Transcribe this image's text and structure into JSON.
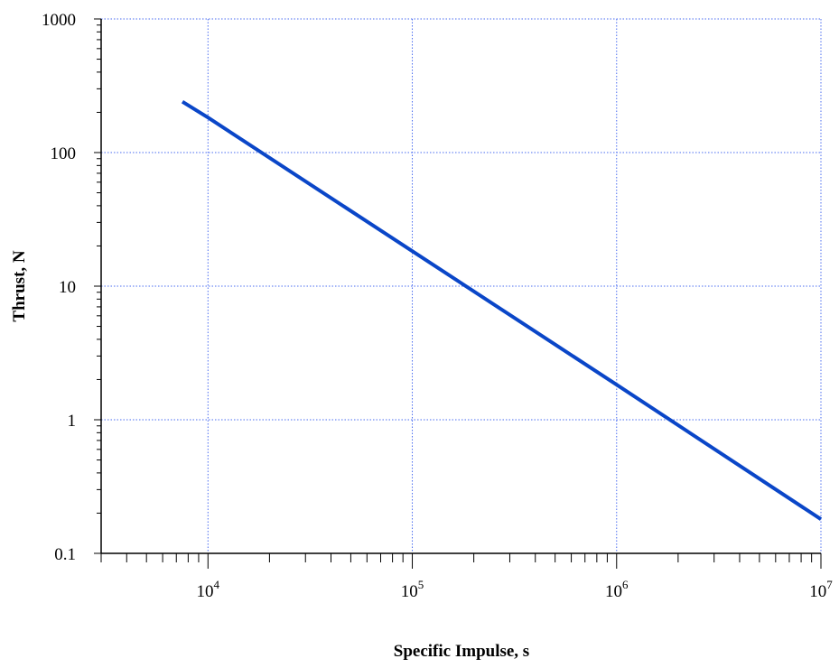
{
  "chart_data": {
    "type": "line",
    "title": "",
    "xlabel": "Specific Impulse, s",
    "ylabel": "Thrust, N",
    "xscale": "log",
    "yscale": "log",
    "xlim": [
      3000,
      10000000
    ],
    "ylim": [
      0.1,
      1000
    ],
    "grid": true,
    "line_color": "#0a46c8",
    "grid_color": "#4a6cf0",
    "x_ticks": [
      {
        "base": "10",
        "exp": "4",
        "value": 10000
      },
      {
        "base": "10",
        "exp": "5",
        "value": 100000
      },
      {
        "base": "10",
        "exp": "6",
        "value": 1000000
      },
      {
        "base": "10",
        "exp": "7",
        "value": 10000000
      }
    ],
    "y_ticks": [
      {
        "label": "0.1",
        "value": 0.1
      },
      {
        "label": "1",
        "value": 1
      },
      {
        "label": "10",
        "value": 10
      },
      {
        "label": "100",
        "value": 100
      },
      {
        "label": "1000",
        "value": 1000
      }
    ],
    "series": [
      {
        "points": [
          {
            "x": 7500,
            "y": 240
          },
          {
            "x": 10000,
            "y": 183
          },
          {
            "x": 100000,
            "y": 18.3
          },
          {
            "x": 1000000,
            "y": 1.83
          },
          {
            "x": 10000000,
            "y": 0.18
          }
        ]
      }
    ]
  }
}
